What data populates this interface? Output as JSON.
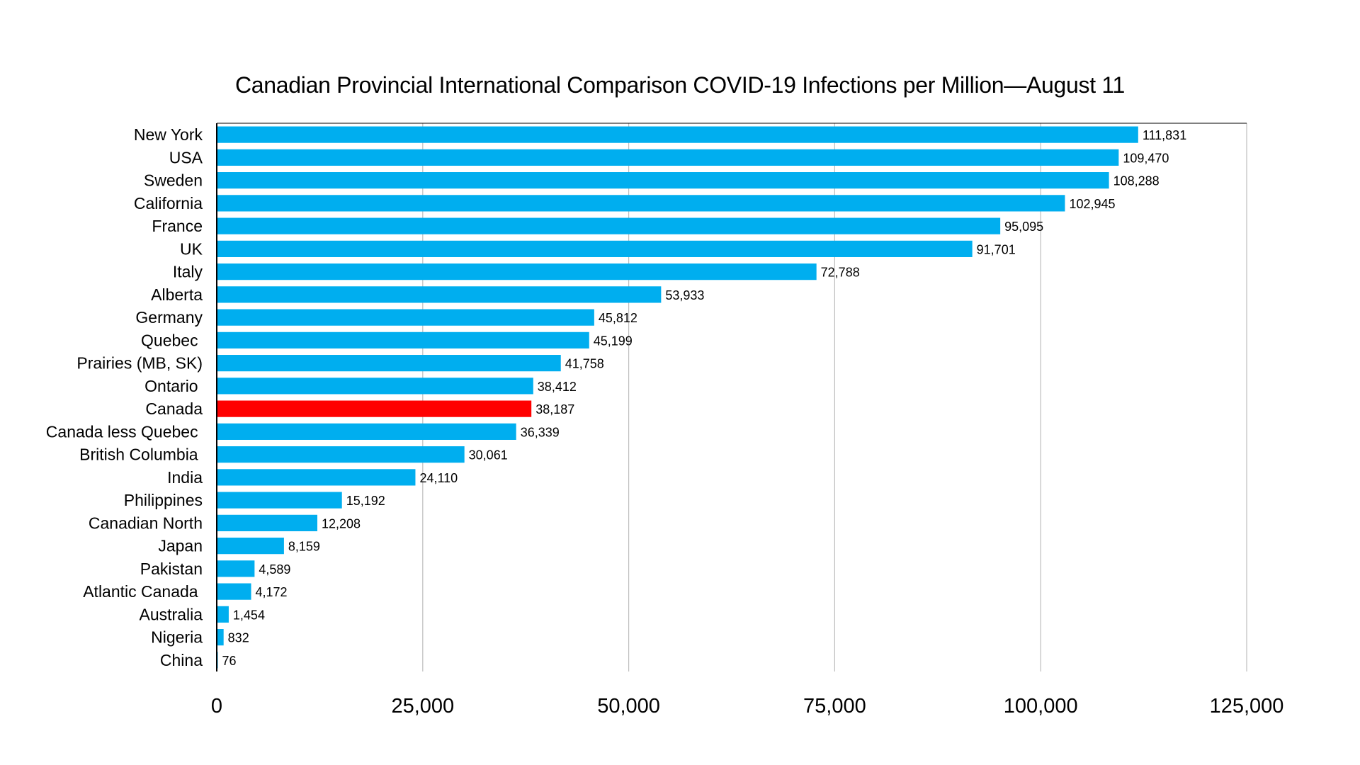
{
  "chart_data": {
    "type": "bar",
    "orientation": "horizontal",
    "title": "Canadian Provincial International Comparison COVID-19 Infections per Million—August 11",
    "xlabel": "",
    "ylabel": "",
    "xlim": [
      0,
      125000
    ],
    "xticks": [
      0,
      25000,
      50000,
      75000,
      100000,
      125000
    ],
    "xtick_labels": [
      "0",
      "25,000",
      "50,000",
      "75,000",
      "100,000",
      "125,000"
    ],
    "grid": "vertical",
    "legend": "none",
    "colors": {
      "default": "#00AEEF",
      "highlight": "#FF0000"
    },
    "categories": [
      "New York",
      "USA",
      "Sweden",
      "California",
      "France",
      "UK",
      "Italy",
      "Alberta",
      "Germany",
      "Quebec ",
      "Prairies (MB, SK)",
      "Ontario ",
      "Canada",
      "Canada less Quebec ",
      "British Columbia ",
      "India",
      "Philippines",
      "Canadian North",
      "Japan",
      "Pakistan",
      "Atlantic Canada ",
      "Australia",
      "Nigeria",
      "China"
    ],
    "values": [
      111831,
      109470,
      108288,
      102945,
      95095,
      91701,
      72788,
      53933,
      45812,
      45199,
      41758,
      38412,
      38187,
      36339,
      30061,
      24110,
      15192,
      12208,
      8159,
      4589,
      4172,
      1454,
      832,
      76
    ],
    "value_labels": [
      "111,831",
      "109,470",
      "108,288",
      "102,945",
      "95,095",
      "91,701",
      "72,788",
      "53,933",
      "45,812",
      "45,199",
      "41,758",
      "38,412",
      "38,187",
      "36,339",
      "30,061",
      "24,110",
      "15,192",
      "12,208",
      "8,159",
      "4,589",
      "4,172",
      "1,454",
      "832",
      "76"
    ],
    "highlight": [
      "Canada"
    ]
  }
}
